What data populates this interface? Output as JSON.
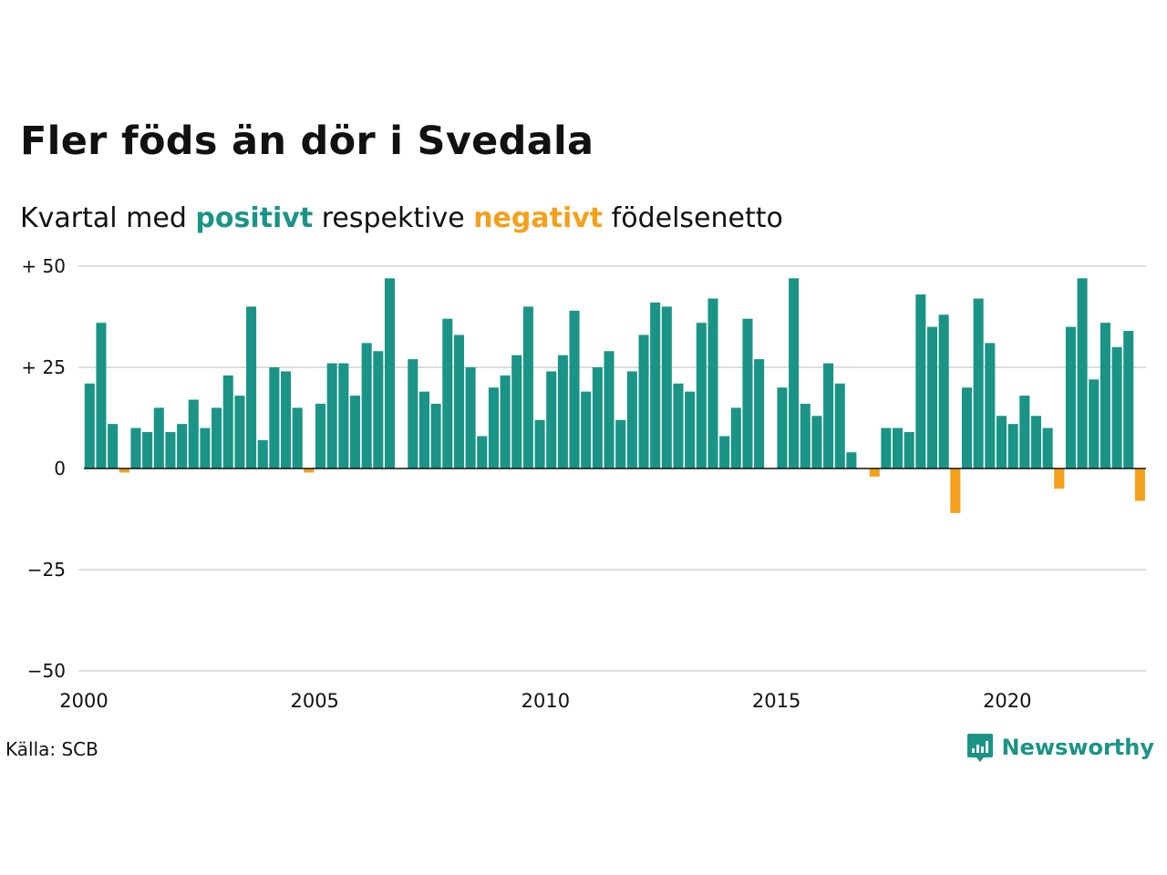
{
  "title": "Fler föds än dör i Svedala",
  "subtitle": {
    "prefix": "Kvartal med ",
    "positive": "positivt",
    "middle": " respektive ",
    "negative": "negativt",
    "suffix": " födelsenetto"
  },
  "source": "Källa: SCB",
  "brand": "Newsworthy",
  "colors": {
    "positive": "#1a9486",
    "negative": "#f5a01a",
    "grid": "#dddddd",
    "zero_line": "#111111",
    "text": "#111111"
  },
  "chart_data": {
    "type": "bar",
    "title": "Fler föds än dör i Svedala",
    "subtitle": "Kvartal med positivt respektive negativt födelsenetto",
    "xlabel": "",
    "ylabel": "",
    "ylim": [
      -50,
      50
    ],
    "yticks": [
      50,
      25,
      0,
      -25,
      -50
    ],
    "ytick_labels": [
      "+ 50",
      "+ 25",
      "0",
      "−25",
      "−50"
    ],
    "xlim": [
      2000,
      2023.25
    ],
    "xticks": [
      2000,
      2005,
      2010,
      2015,
      2020
    ],
    "xtick_labels": [
      "2000",
      "2005",
      "2010",
      "2015",
      "2020"
    ],
    "grid": true,
    "start_year": 2000,
    "values": [
      21,
      36,
      11,
      -1,
      10,
      9,
      15,
      9,
      11,
      17,
      10,
      15,
      23,
      18,
      40,
      7,
      25,
      24,
      15,
      -1,
      16,
      26,
      26,
      18,
      31,
      29,
      47,
      0,
      27,
      19,
      16,
      37,
      33,
      25,
      8,
      20,
      23,
      28,
      40,
      12,
      24,
      28,
      39,
      19,
      25,
      29,
      12,
      24,
      33,
      41,
      40,
      21,
      19,
      36,
      42,
      8,
      15,
      37,
      27,
      0,
      20,
      47,
      16,
      13,
      26,
      21,
      4,
      0,
      -2,
      10,
      10,
      9,
      43,
      35,
      38,
      -11,
      20,
      42,
      31,
      13,
      11,
      18,
      13,
      10,
      -5,
      35,
      47,
      22,
      36,
      30,
      34,
      -8
    ]
  }
}
